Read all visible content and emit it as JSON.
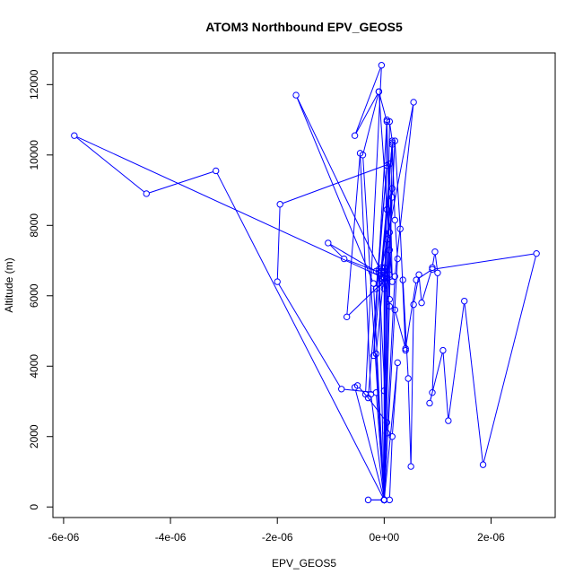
{
  "chart_data": {
    "type": "line",
    "title": "ATOM3 Northbound EPV_GEOS5",
    "xlabel": "EPV_GEOS5",
    "ylabel": "Altitude (m)",
    "xlim": [
      -6.2e-06,
      3.2e-06
    ],
    "ylim": [
      -300,
      12900
    ],
    "xticks": [
      -6e-06,
      -4e-06,
      -2e-06,
      0,
      2e-06
    ],
    "xtick_labels": [
      "-6e-06",
      "-4e-06",
      "-2e-06",
      "0e+00",
      "2e-06"
    ],
    "yticks": [
      0,
      2000,
      4000,
      6000,
      8000,
      10000,
      12000
    ],
    "ytick_labels": [
      "0",
      "2000",
      "4000",
      "6000",
      "8000",
      "10000",
      "12000"
    ],
    "grid": false,
    "legend": "none",
    "series": [
      {
        "color": "#0000ff",
        "marker": "open-circle",
        "x": [
          0.0,
          5e-08,
          -3.5e-07,
          -5e-08,
          -5.5e-07,
          -1e-07,
          5e-08,
          1e-07,
          0.0,
          5e-08,
          -2e-07,
          1.5e-07,
          -5e-08,
          1.5e-07,
          1e-07,
          0.0,
          -5.5e-07,
          -5e-07,
          -3e-07,
          5e-08,
          -1.5e-07,
          1e-07,
          -5e-08,
          5e-08,
          0.0,
          -1e-07,
          5.5e-07,
          2e-07,
          5e-08,
          -1e-07,
          -1.05e-06,
          -7.5e-07,
          -1.5e-07,
          5e-08,
          -7e-07,
          -4.5e-07,
          -2.5e-07,
          0.0,
          -4e-07,
          -1e-07,
          1.5e-07,
          1e-07,
          -1.95e-06,
          -2e-06,
          -8e-07,
          -1.5e-07,
          0.0,
          -3e-07,
          0.0,
          0.0,
          1e-07,
          1.5e-07,
          2.5e-07,
          0.0,
          0.0,
          0.0,
          0.0,
          0.0,
          0.0,
          0.0,
          1e-07,
          1.5e-07,
          2e-07,
          3e-07,
          4e-07,
          3.5e-07,
          4.5e-07,
          5e-07,
          5.5e-07,
          6.5e-07,
          7e-07,
          9e-07,
          9.5e-07,
          1e-06,
          9e-07,
          8.5e-07,
          1.1e-06,
          1.2e-06,
          1.5e-06,
          1.85e-06,
          2.85e-06,
          9e-07,
          6e-07,
          4e-07,
          2e-07,
          1e-07,
          0.0,
          -5e-08,
          -1e-07,
          0.0,
          5e-08,
          1.5e-07,
          -1.5e-07,
          0.0,
          1e-07,
          1.5e-07,
          2e-07,
          2.5e-07,
          0.0,
          -3.15e-06,
          -4.45e-06,
          -5.8e-06,
          0.0,
          -1.65e-06,
          -2e-07,
          0.0,
          0.0,
          0.0
        ],
        "y": [
          200,
          2400,
          3200,
          12550,
          10550,
          11800,
          10950,
          7800,
          3300,
          11000,
          4300,
          10350,
          6500,
          10300,
          5900,
          200,
          3400,
          3450,
          3100,
          9700,
          6200,
          6600,
          6800,
          8450,
          6200,
          6350,
          11500,
          6550,
          2100,
          6650,
          7500,
          7050,
          6700,
          6500,
          5400,
          10050,
          3200,
          200,
          10000,
          11800,
          6400,
          9750,
          8600,
          6400,
          3350,
          3250,
          200,
          200,
          200,
          200,
          200,
          2000,
          4100,
          200,
          6400,
          6500,
          6600,
          6700,
          6800,
          200,
          7300,
          8800,
          10400,
          7900,
          4450,
          6450,
          3650,
          1150,
          5750,
          6600,
          5800,
          6800,
          7250,
          6650,
          3250,
          2950,
          4450,
          2450,
          5850,
          1200,
          7200,
          6750,
          6450,
          4500,
          5600,
          5700,
          6500,
          6700,
          6750,
          200,
          7600,
          9050,
          4350,
          200,
          10950,
          10400,
          8150,
          7050,
          200,
          9550,
          8900,
          10550,
          6500,
          11700,
          6350,
          200,
          200,
          200
        ]
      }
    ]
  }
}
